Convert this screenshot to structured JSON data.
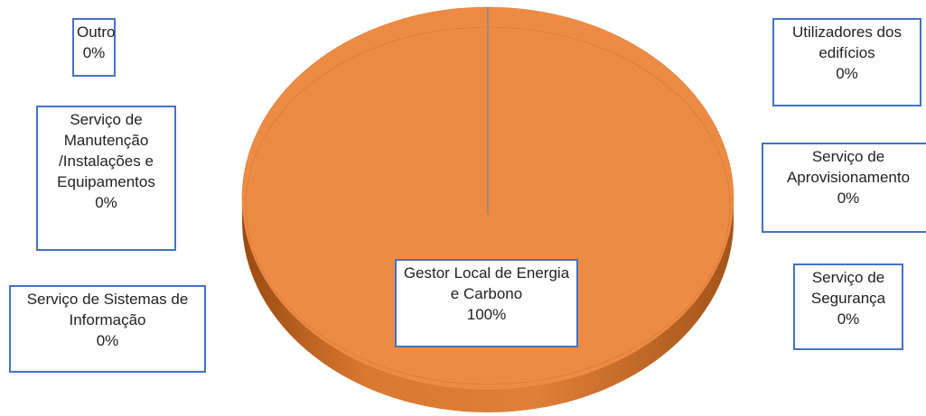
{
  "chart_data": {
    "type": "pie",
    "categories": [
      "Gestor Local de Energia e Carbono",
      "Utilizadores dos edifícios",
      "Serviço de Aprovisionamento",
      "Serviço de Segurança",
      "Serviço de Sistemas de Informação",
      "Serviço de Manutenção /Instalações e Equipamentos",
      "Outro"
    ],
    "values": [
      100,
      0,
      0,
      0,
      0,
      0,
      0
    ],
    "value_labels": [
      "100%",
      "0%",
      "0%",
      "0%",
      "0%",
      "0%",
      "0%"
    ],
    "color": "#ed8b45"
  }
}
